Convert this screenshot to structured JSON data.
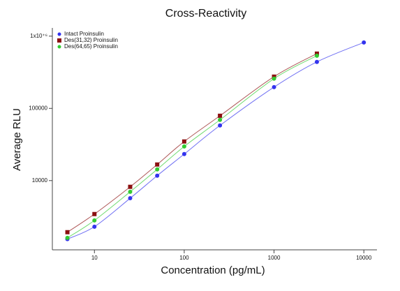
{
  "chart_data": {
    "type": "scatter",
    "title": "Cross-Reactivity",
    "x_label": "Concentration (pg/mL)",
    "y_label": "Average RLU",
    "x": [
      5,
      10,
      25,
      50,
      100,
      250,
      1000,
      3000,
      10000
    ],
    "series": [
      {
        "name": "Intact Proinsulin",
        "color": "#3333ee",
        "marker": "circle",
        "values": [
          1550,
          2300,
          5700,
          11700,
          23300,
          58000,
          197000,
          440000,
          818000
        ]
      },
      {
        "name": "Des(31,32) Proinsulin",
        "color": "#8b1010",
        "marker": "square",
        "values": [
          1930,
          3440,
          8200,
          16700,
          34800,
          79000,
          275000,
          573000,
          null
        ]
      },
      {
        "name": "Des(64,65) Proinsulin",
        "color": "#33cc33",
        "marker": "circle",
        "values": [
          1610,
          2810,
          7000,
          14300,
          29700,
          69300,
          258000,
          536000,
          null
        ]
      }
    ],
    "xlog": true,
    "ylog": true,
    "xlim": [
      3.4,
      14000
    ],
    "ylim": [
      1100,
      1300000
    ],
    "xticks": [
      10,
      100,
      1000,
      10000
    ],
    "yticks": [
      10000,
      100000,
      {
        "value": 1000000,
        "label": "1x10⁺⁶"
      }
    ],
    "legend": "top-left"
  }
}
